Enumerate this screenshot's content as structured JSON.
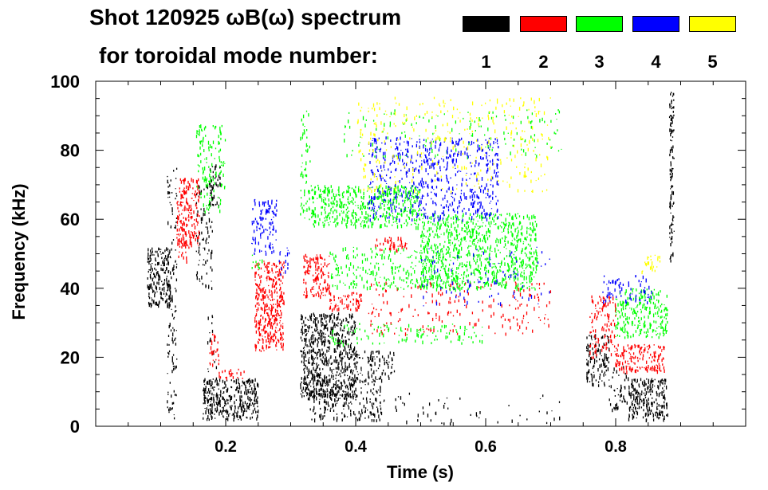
{
  "chart_data": {
    "type": "scatter",
    "title": "Shot 120925 ωB(ω) spectrum",
    "subtitle": "for toroidal mode number:",
    "xlabel": "Time (s)",
    "ylabel": "Frequency (kHz)",
    "xlim": [
      0.0,
      1.0
    ],
    "ylim": [
      0,
      100
    ],
    "xticks": [
      0.2,
      0.4,
      0.6,
      0.8
    ],
    "xtick_labels": [
      "0.2",
      "0.4",
      "0.6",
      "0.8"
    ],
    "yticks": [
      0,
      20,
      40,
      60,
      80,
      100
    ],
    "ytick_labels": [
      "0",
      "20",
      "40",
      "60",
      "80",
      "100"
    ],
    "legend": [
      {
        "label": "1",
        "color": "#000000"
      },
      {
        "label": "2",
        "color": "#ff0000"
      },
      {
        "label": "3",
        "color": "#00ff00"
      },
      {
        "label": "4",
        "color": "#0000ff"
      },
      {
        "label": "5",
        "color": "#ffff00"
      }
    ],
    "series": [
      {
        "name": "1",
        "color": "#000000",
        "blobs": [
          {
            "t0": 0.08,
            "t1": 0.115,
            "f0": 35,
            "f1": 52,
            "d": 1.0
          },
          {
            "t0": 0.11,
            "t1": 0.125,
            "f0": 1,
            "f1": 76,
            "d": 0.35
          },
          {
            "t0": 0.155,
            "t1": 0.18,
            "f0": 40,
            "f1": 70,
            "d": 0.35
          },
          {
            "t0": 0.165,
            "t1": 0.25,
            "f0": 2,
            "f1": 14,
            "d": 1.0
          },
          {
            "t0": 0.175,
            "t1": 0.192,
            "f0": 64,
            "f1": 76,
            "d": 0.8
          },
          {
            "t0": 0.172,
            "t1": 0.186,
            "f0": 6,
            "f1": 35,
            "d": 0.2
          },
          {
            "t0": 0.315,
            "t1": 0.4,
            "f0": 8,
            "f1": 33,
            "d": 1.0
          },
          {
            "t0": 0.33,
            "t1": 0.44,
            "f0": 2,
            "f1": 14,
            "d": 0.5
          },
          {
            "t0": 0.4,
            "t1": 0.46,
            "f0": 14,
            "f1": 22,
            "d": 0.6
          },
          {
            "t0": 0.43,
            "t1": 0.72,
            "f0": 1,
            "f1": 10,
            "d": 0.06
          },
          {
            "t0": 0.755,
            "t1": 0.79,
            "f0": 12,
            "f1": 27,
            "d": 0.7
          },
          {
            "t0": 0.82,
            "t1": 0.88,
            "f0": 2,
            "f1": 14,
            "d": 1.0
          },
          {
            "t0": 0.79,
            "t1": 0.83,
            "f0": 5,
            "f1": 18,
            "d": 0.3
          },
          {
            "t0": 0.883,
            "t1": 0.89,
            "f0": 48,
            "f1": 97,
            "d": 1.0
          }
        ]
      },
      {
        "name": "2",
        "color": "#ff0000",
        "blobs": [
          {
            "t0": 0.125,
            "t1": 0.16,
            "f0": 52,
            "f1": 72,
            "d": 0.8
          },
          {
            "t0": 0.125,
            "t1": 0.14,
            "f0": 48,
            "f1": 58,
            "d": 0.6
          },
          {
            "t0": 0.175,
            "t1": 0.19,
            "f0": 18,
            "f1": 27,
            "d": 0.6
          },
          {
            "t0": 0.19,
            "t1": 0.23,
            "f0": 14,
            "f1": 17,
            "d": 0.5
          },
          {
            "t0": 0.245,
            "t1": 0.29,
            "f0": 22,
            "f1": 48,
            "d": 1.0
          },
          {
            "t0": 0.32,
            "t1": 0.36,
            "f0": 38,
            "f1": 50,
            "d": 0.9
          },
          {
            "t0": 0.36,
            "t1": 0.41,
            "f0": 34,
            "f1": 39,
            "d": 0.8
          },
          {
            "t0": 0.43,
            "t1": 0.48,
            "f0": 51,
            "f1": 55,
            "d": 0.7
          },
          {
            "t0": 0.42,
            "t1": 0.7,
            "f0": 27,
            "f1": 42,
            "d": 0.15
          },
          {
            "t0": 0.76,
            "t1": 0.8,
            "f0": 20,
            "f1": 38,
            "d": 0.5
          },
          {
            "t0": 0.8,
            "t1": 0.875,
            "f0": 16,
            "f1": 24,
            "d": 0.9
          }
        ]
      },
      {
        "name": "3",
        "color": "#00ff00",
        "blobs": [
          {
            "t0": 0.155,
            "t1": 0.2,
            "f0": 62,
            "f1": 88,
            "d": 0.35
          },
          {
            "t0": 0.24,
            "t1": 0.26,
            "f0": 45,
            "f1": 50,
            "d": 0.3
          },
          {
            "t0": 0.315,
            "t1": 0.33,
            "f0": 60,
            "f1": 92,
            "d": 0.4
          },
          {
            "t0": 0.33,
            "t1": 0.5,
            "f0": 58,
            "f1": 70,
            "d": 0.8
          },
          {
            "t0": 0.5,
            "t1": 0.68,
            "f0": 40,
            "f1": 62,
            "d": 0.7
          },
          {
            "t0": 0.36,
            "t1": 0.56,
            "f0": 40,
            "f1": 52,
            "d": 0.35
          },
          {
            "t0": 0.36,
            "t1": 0.6,
            "f0": 24,
            "f1": 30,
            "d": 0.25
          },
          {
            "t0": 0.8,
            "t1": 0.88,
            "f0": 26,
            "f1": 40,
            "d": 0.7
          },
          {
            "t0": 0.38,
            "t1": 0.72,
            "f0": 78,
            "f1": 92,
            "d": 0.1
          }
        ]
      },
      {
        "name": "4",
        "color": "#0000ff",
        "blobs": [
          {
            "t0": 0.24,
            "t1": 0.28,
            "f0": 50,
            "f1": 66,
            "d": 0.5
          },
          {
            "t0": 0.28,
            "t1": 0.3,
            "f0": 44,
            "f1": 52,
            "d": 0.3
          },
          {
            "t0": 0.42,
            "t1": 0.62,
            "f0": 60,
            "f1": 84,
            "d": 0.4
          },
          {
            "t0": 0.5,
            "t1": 0.7,
            "f0": 35,
            "f1": 52,
            "d": 0.08
          },
          {
            "t0": 0.78,
            "t1": 0.86,
            "f0": 36,
            "f1": 44,
            "d": 0.35
          }
        ]
      },
      {
        "name": "5",
        "color": "#ffff00",
        "blobs": [
          {
            "t0": 0.4,
            "t1": 0.7,
            "f0": 68,
            "f1": 96,
            "d": 0.12
          },
          {
            "t0": 0.84,
            "t1": 0.87,
            "f0": 45,
            "f1": 50,
            "d": 0.5
          }
        ]
      }
    ]
  }
}
